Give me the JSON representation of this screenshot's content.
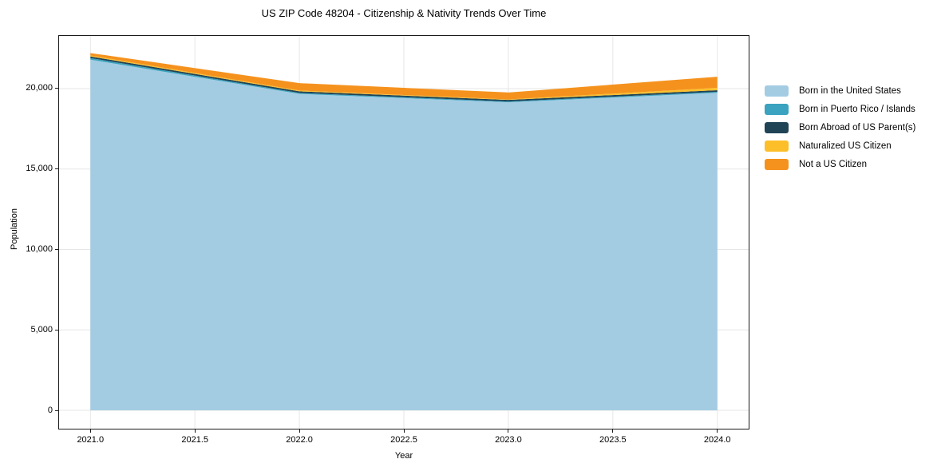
{
  "chart_data": {
    "type": "area",
    "stacked": true,
    "title": "US ZIP Code 48204 - Citizenship & Nativity Trends Over Time",
    "xlabel": "Year",
    "ylabel": "Population",
    "x": [
      2021,
      2022,
      2023,
      2024
    ],
    "series": [
      {
        "name": "Born in the United States",
        "color": "#a3cce3",
        "values": [
          21800,
          19670,
          19150,
          19740
        ]
      },
      {
        "name": "Born in Puerto Rico / Islands",
        "color": "#3ba3bf",
        "values": [
          100,
          60,
          50,
          60
        ]
      },
      {
        "name": "Born Abroad of US Parent(s)",
        "color": "#204355",
        "values": [
          100,
          100,
          100,
          100
        ]
      },
      {
        "name": "Naturalized US Citizen",
        "color": "#fcbf2a",
        "values": [
          60,
          50,
          30,
          150
        ]
      },
      {
        "name": "Not a US Citizen",
        "color": "#f5921e",
        "values": [
          150,
          460,
          430,
          690
        ]
      }
    ],
    "x_ticks": [
      2021.0,
      2021.5,
      2022.0,
      2022.5,
      2023.0,
      2023.5,
      2024.0
    ],
    "x_tick_labels": [
      "2021.0",
      "2021.5",
      "2022.0",
      "2022.5",
      "2023.0",
      "2023.5",
      "2024.0"
    ],
    "y_ticks": [
      0,
      5000,
      10000,
      15000,
      20000
    ],
    "y_tick_labels": [
      "0",
      "5,000",
      "10,000",
      "15,000",
      "20,000"
    ],
    "xlim": [
      2020.85,
      2024.15
    ],
    "ylim": [
      -1140,
      23275
    ],
    "grid": true,
    "grid_color": "#e6e6e6",
    "axis_color": "#1a1a1a",
    "legend_position": "right"
  }
}
